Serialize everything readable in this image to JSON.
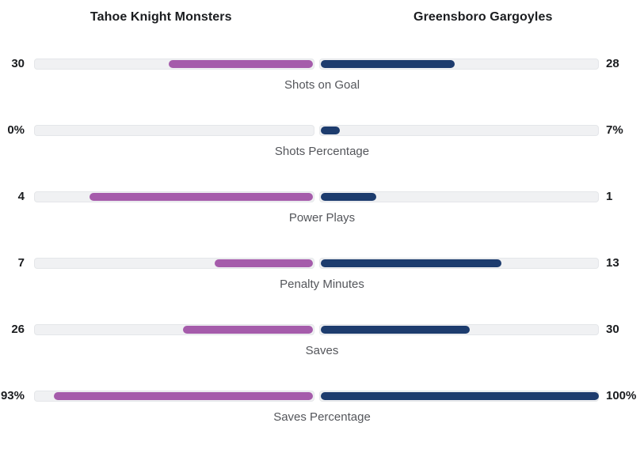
{
  "teams": {
    "left": {
      "name": "Tahoe Knight Monsters",
      "color": "#a55cab"
    },
    "right": {
      "name": "Greensboro Gargoyles",
      "color": "#1d3c6e"
    }
  },
  "track_color": "#f0f1f3",
  "stats": [
    {
      "label": "Shots on Goal",
      "left_value": "30",
      "right_value": "28",
      "left_pct": 51.7,
      "right_pct": 48.3
    },
    {
      "label": "Shots Percentage",
      "left_value": "0%",
      "right_value": "7%",
      "left_pct": 0,
      "right_pct": 7
    },
    {
      "label": "Power Plays",
      "left_value": "4",
      "right_value": "1",
      "left_pct": 80,
      "right_pct": 20
    },
    {
      "label": "Penalty Minutes",
      "left_value": "7",
      "right_value": "13",
      "left_pct": 35,
      "right_pct": 65
    },
    {
      "label": "Saves",
      "left_value": "26",
      "right_value": "30",
      "left_pct": 46.4,
      "right_pct": 53.6
    },
    {
      "label": "Saves Percentage",
      "left_value": "93%",
      "right_value": "100%",
      "left_pct": 93,
      "right_pct": 100
    }
  ],
  "chart_data": {
    "type": "bar",
    "orientation": "horizontal-paired-comparison",
    "categories": [
      "Shots on Goal",
      "Shots Percentage",
      "Power Plays",
      "Penalty Minutes",
      "Saves",
      "Saves Percentage"
    ],
    "series": [
      {
        "name": "Tahoe Knight Monsters",
        "values": [
          30,
          0,
          4,
          7,
          26,
          93
        ],
        "display": [
          "30",
          "0%",
          "4",
          "7",
          "26",
          "93%"
        ],
        "color": "#a55cab"
      },
      {
        "name": "Greensboro Gargoyles",
        "values": [
          28,
          7,
          1,
          13,
          30,
          100
        ],
        "display": [
          "28",
          "7%",
          "1",
          "13",
          "30",
          "100%"
        ],
        "color": "#1d3c6e"
      }
    ],
    "title": "",
    "xlabel": "",
    "ylabel": "",
    "notes": "Count stats scaled to share of combined total; percentage stats scaled to 0-100 range. Bars grow outward from center."
  }
}
